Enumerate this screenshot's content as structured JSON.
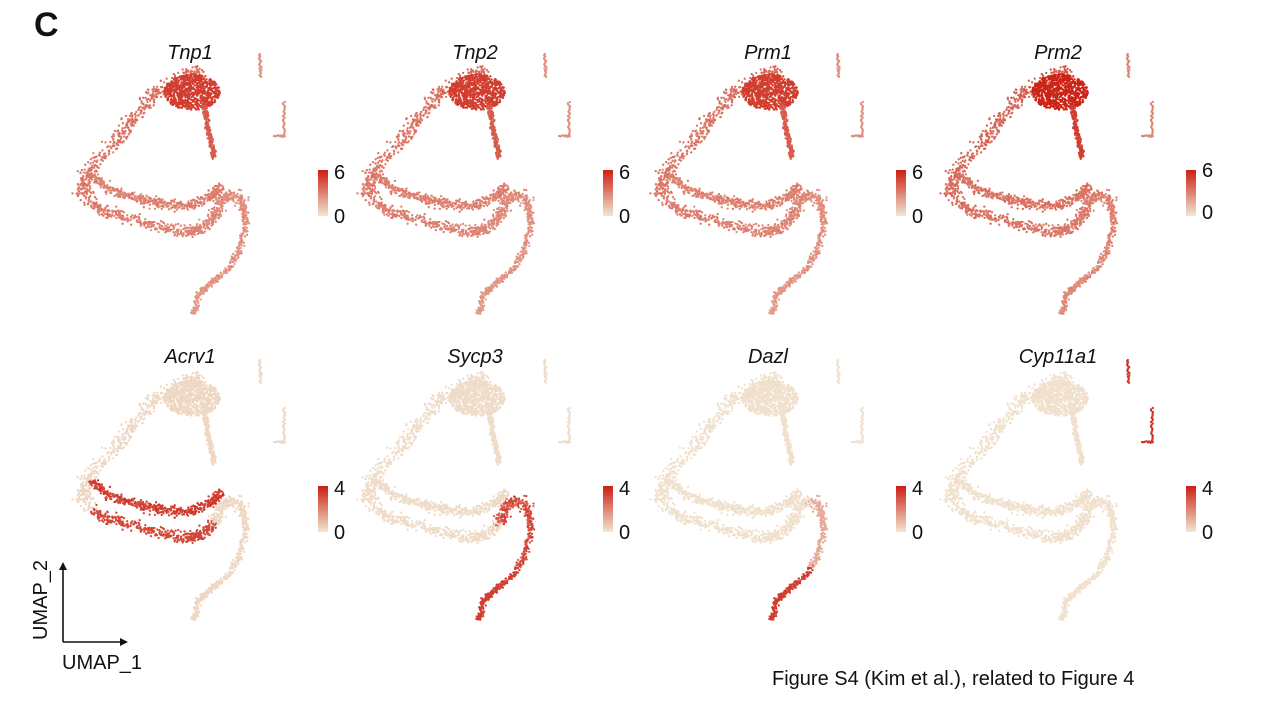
{
  "panel_label": "C",
  "caption": "Figure S4 (Kim et al.), related to Figure 4",
  "axes": {
    "x_label": "UMAP_1",
    "y_label": "UMAP_2"
  },
  "colors": {
    "low": "#f1e6d2",
    "high": "#cc1f12"
  },
  "chart_data": [
    {
      "type": "scatter",
      "title": "Tnp1",
      "scale": {
        "min": "0",
        "max": "6"
      },
      "pattern": "spermatid-high"
    },
    {
      "type": "scatter",
      "title": "Tnp2",
      "scale": {
        "min": "0",
        "max": "6"
      },
      "pattern": "spermatid-high"
    },
    {
      "type": "scatter",
      "title": "Prm1",
      "scale": {
        "min": "0",
        "max": "6"
      },
      "pattern": "spermatid-high"
    },
    {
      "type": "scatter",
      "title": "Prm2",
      "scale": {
        "min": "0",
        "max": "6"
      },
      "pattern": "spermatid-very-high"
    },
    {
      "type": "scatter",
      "title": "Acrv1",
      "scale": {
        "min": "0",
        "max": "4"
      },
      "pattern": "middle-arc"
    },
    {
      "type": "scatter",
      "title": "Sycp3",
      "scale": {
        "min": "0",
        "max": "4"
      },
      "pattern": "lower-right"
    },
    {
      "type": "scatter",
      "title": "Dazl",
      "scale": {
        "min": "0",
        "max": "4"
      },
      "pattern": "tail"
    },
    {
      "type": "scatter",
      "title": "Cyp11a1",
      "scale": {
        "min": "0",
        "max": "4"
      },
      "pattern": "islet"
    }
  ]
}
